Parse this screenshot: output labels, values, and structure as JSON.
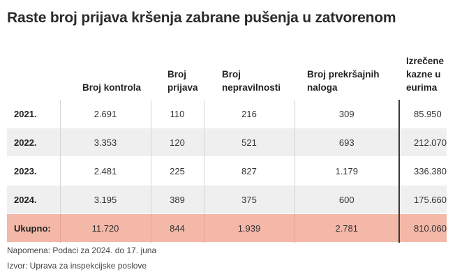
{
  "title": "Raste broj prijava kršenja zabrane pušenja u zatvorenom",
  "headers": [
    "",
    "Broj kontrola",
    "Broj prijava",
    "Broj nepravilnosti",
    "Broj prekršajnih naloga",
    "Izrečene kazne u eurima"
  ],
  "rows": [
    {
      "year": "2021.",
      "values": [
        "2.691",
        "110",
        "216",
        "309",
        "85.950"
      ]
    },
    {
      "year": "2022.",
      "values": [
        "3.353",
        "120",
        "521",
        "693",
        "212.070"
      ]
    },
    {
      "year": "2023.",
      "values": [
        "2.481",
        "225",
        "827",
        "1.179",
        "336.380"
      ]
    },
    {
      "year": "2024.",
      "values": [
        "3.195",
        "389",
        "375",
        "600",
        "175.660"
      ]
    }
  ],
  "total": {
    "label": "Ukupno:",
    "values": [
      "11.720",
      "844",
      "1.939",
      "2.781",
      "810.060"
    ]
  },
  "notes": {
    "napomena": "Napomena: Podaci za 2024. do 17. juna",
    "izvor": "Izvor: Uprava za inspekcijske poslove"
  },
  "colors": {
    "total_row": "#f4b8a8",
    "stripe": "#efefef"
  }
}
